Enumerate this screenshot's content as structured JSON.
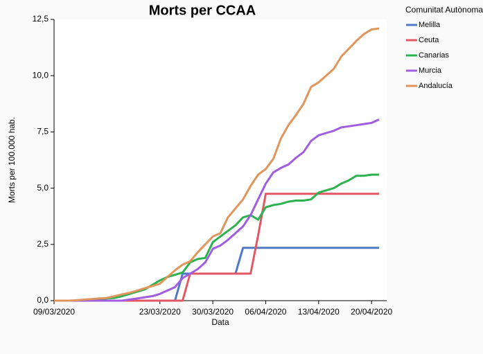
{
  "chart_data": {
    "type": "line",
    "title": "Morts per CCAA",
    "x_label": "Data",
    "y_label": "Morts per 100.000 hab.",
    "legend_title": "Comunitat Autònoma",
    "legend": "right",
    "x": [
      "09/03/2020",
      "10/03/2020",
      "11/03/2020",
      "12/03/2020",
      "13/03/2020",
      "14/03/2020",
      "15/03/2020",
      "16/03/2020",
      "17/03/2020",
      "18/03/2020",
      "19/03/2020",
      "20/03/2020",
      "21/03/2020",
      "22/03/2020",
      "23/03/2020",
      "24/03/2020",
      "25/03/2020",
      "26/03/2020",
      "27/03/2020",
      "28/03/2020",
      "29/03/2020",
      "30/03/2020",
      "31/03/2020",
      "01/04/2020",
      "02/04/2020",
      "03/04/2020",
      "04/04/2020",
      "05/04/2020",
      "06/04/2020",
      "07/04/2020",
      "08/04/2020",
      "09/04/2020",
      "10/04/2020",
      "11/04/2020",
      "12/04/2020",
      "13/04/2020",
      "14/04/2020",
      "15/04/2020",
      "16/04/2020",
      "17/04/2020",
      "18/04/2020",
      "19/04/2020",
      "20/04/2020",
      "21/04/2020"
    ],
    "xlim": [
      "09/03/2020",
      "22/04/2020"
    ],
    "xticks": [
      "09/03/2020",
      "23/03/2020",
      "30/03/2020",
      "06/04/2020",
      "13/04/2020",
      "20/04/2020"
    ],
    "ylim": [
      0,
      12.5
    ],
    "yticks": [
      {
        "value": 0,
        "label": "0,0"
      },
      {
        "value": 2.5,
        "label": "2,5"
      },
      {
        "value": 5,
        "label": "5,0"
      },
      {
        "value": 7.5,
        "label": "7,5"
      },
      {
        "value": 10,
        "label": "10,0"
      },
      {
        "value": 12.5,
        "label": "12,5"
      }
    ],
    "series": [
      {
        "name": "Melilla",
        "color": "#4e79c7",
        "values": [
          0,
          0,
          0,
          0,
          0,
          0,
          0,
          0,
          0,
          0,
          0,
          0,
          0,
          0,
          0,
          0,
          0,
          1.2,
          1.2,
          1.2,
          1.2,
          1.2,
          1.2,
          1.2,
          1.2,
          2.35,
          2.35,
          2.35,
          2.35,
          2.35,
          2.35,
          2.35,
          2.35,
          2.35,
          2.35,
          2.35,
          2.35,
          2.35,
          2.35,
          2.35,
          2.35,
          2.35,
          2.35,
          2.35
        ]
      },
      {
        "name": "Ceuta",
        "color": "#e15763",
        "values": [
          0,
          0,
          0,
          0,
          0,
          0,
          0,
          0,
          0,
          0,
          0,
          0,
          0,
          0,
          0,
          0,
          0,
          0,
          1.2,
          1.2,
          1.2,
          1.2,
          1.2,
          1.2,
          1.2,
          1.2,
          1.2,
          2.9,
          4.75,
          4.75,
          4.75,
          4.75,
          4.75,
          4.75,
          4.75,
          4.75,
          4.75,
          4.75,
          4.75,
          4.75,
          4.75,
          4.75,
          4.75,
          4.75
        ]
      },
      {
        "name": "Canarias",
        "color": "#2bb24f",
        "values": [
          0,
          0,
          0,
          0,
          0.02,
          0.05,
          0.05,
          0.1,
          0.12,
          0.2,
          0.3,
          0.4,
          0.5,
          0.7,
          0.9,
          1.05,
          1.15,
          1.25,
          1.7,
          1.85,
          1.9,
          2.6,
          2.85,
          3.1,
          3.35,
          3.7,
          3.8,
          3.6,
          4.15,
          4.25,
          4.3,
          4.4,
          4.45,
          4.45,
          4.5,
          4.8,
          4.9,
          5.0,
          5.2,
          5.35,
          5.55,
          5.55,
          5.6,
          5.6
        ]
      },
      {
        "name": "Murcia",
        "color": "#a05de0",
        "values": [
          0,
          0,
          0,
          0,
          0,
          0,
          0,
          0,
          0,
          0,
          0.05,
          0.1,
          0.15,
          0.2,
          0.3,
          0.45,
          0.6,
          1.0,
          1.2,
          1.4,
          1.7,
          2.3,
          2.45,
          2.7,
          3.0,
          3.3,
          3.8,
          4.5,
          5.2,
          5.7,
          5.9,
          6.05,
          6.35,
          6.6,
          7.1,
          7.35,
          7.45,
          7.55,
          7.7,
          7.75,
          7.8,
          7.85,
          7.9,
          8.05
        ]
      },
      {
        "name": "Andalucía",
        "color": "#e0955a",
        "values": [
          0,
          0,
          0,
          0.02,
          0.05,
          0.07,
          0.1,
          0.12,
          0.2,
          0.28,
          0.35,
          0.45,
          0.55,
          0.65,
          0.75,
          1.05,
          1.35,
          1.6,
          1.75,
          2.15,
          2.5,
          2.85,
          3.0,
          3.7,
          4.1,
          4.5,
          5.1,
          5.6,
          5.85,
          6.3,
          7.2,
          7.8,
          8.25,
          8.75,
          9.5,
          9.7,
          10.0,
          10.3,
          10.85,
          11.2,
          11.55,
          11.85,
          12.05,
          12.1
        ]
      }
    ]
  }
}
